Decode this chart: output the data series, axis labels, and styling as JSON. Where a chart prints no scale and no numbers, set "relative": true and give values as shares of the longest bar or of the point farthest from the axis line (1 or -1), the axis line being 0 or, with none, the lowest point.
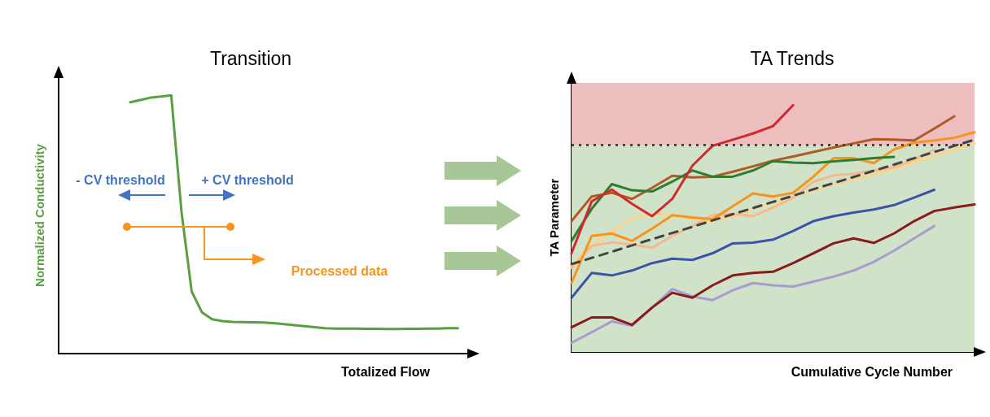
{
  "chart_data": [
    {
      "type": "line",
      "title": "Transition",
      "xlabel": "Totalized Flow",
      "ylabel": "Normalized Conductivity",
      "relative": true,
      "marker": "none",
      "categories": [
        null,
        null,
        null,
        null,
        null,
        null,
        null,
        null,
        null,
        null,
        null,
        null,
        null,
        null,
        null,
        null,
        null,
        null,
        null,
        null,
        null,
        null,
        null,
        null,
        null,
        null,
        null,
        null,
        null,
        null,
        null,
        null,
        null,
        null,
        null,
        null,
        null,
        null,
        null,
        null,
        null
      ],
      "series": [
        {
          "color": "#58a040",
          "values": [
            null,
            null,
            null,
            null,
            null,
            null,
            null,
            0.973,
            0.982,
            0.991,
            0.995,
            1.0,
            0.55,
            0.24,
            0.16,
            0.133,
            0.126,
            0.123,
            0.122,
            0.121,
            0.12,
            0.118,
            0.114,
            0.11,
            0.106,
            0.102,
            0.098,
            0.097,
            0.097,
            0.097,
            0.096,
            0.096,
            0.095,
            0.095,
            0.096,
            0.096,
            0.097,
            0.097,
            0.098,
            0.098,
            null
          ]
        }
      ],
      "annotations": [
        "- CV threshold",
        "+ CV threshold",
        "Processed data"
      ]
    },
    {
      "type": "line",
      "title": "TA Trends",
      "xlabel": "Cumulative Cycle Number",
      "ylabel": "TA Parameter",
      "relative": true,
      "marker": "none",
      "categories": [
        null,
        null,
        null,
        null,
        null,
        null,
        null,
        null,
        null,
        null,
        null,
        null,
        null,
        null,
        null,
        null,
        null,
        null,
        null,
        null,
        null
      ],
      "bands": [
        {
          "axis": "y",
          "from": 0,
          "to": 0.837,
          "color": "#d0e2c8"
        },
        {
          "axis": "y",
          "from": 0.837,
          "to": 1.09,
          "color": "#ecbfbe"
        }
      ],
      "ref_lines": [
        {
          "axis": "y",
          "value": 0.837,
          "color": "#444444",
          "line_style": "dotted"
        }
      ],
      "series": [
        {
          "color": "#a89bd0",
          "values": [
            0.037,
            0.08,
            0.124,
            0.106,
            0.18,
            0.255,
            0.225,
            0.21,
            0.25,
            0.279,
            0.27,
            0.265,
            0.285,
            0.305,
            0.33,
            0.365,
            0.41,
            0.46,
            0.51,
            null,
            null
          ]
        },
        {
          "color": "#8b1a1a",
          "values": [
            0.1,
            0.14,
            0.14,
            0.11,
            0.18,
            0.24,
            0.22,
            0.27,
            0.31,
            0.32,
            0.325,
            0.36,
            0.4,
            0.44,
            0.46,
            0.442,
            0.48,
            0.53,
            0.571,
            0.585,
            0.598
          ]
        },
        {
          "color": "#3a55a8",
          "values": [
            0.22,
            0.32,
            0.31,
            0.33,
            0.36,
            0.378,
            0.373,
            0.4,
            0.44,
            0.443,
            0.455,
            0.49,
            0.53,
            0.55,
            0.565,
            0.577,
            0.595,
            0.625,
            0.657,
            null,
            null
          ]
        },
        {
          "color": "#fdd58a",
          "values": [
            0.35,
            0.43,
            0.49,
            0.54,
            0.56,
            0.555,
            0.54,
            0.528,
            0.55,
            0.58,
            0.605,
            0.632,
            0.655,
            0.678,
            0.7,
            0.72,
            0.742,
            0.77,
            0.795,
            0.82,
            0.845
          ]
        },
        {
          "color": "#f6b98e",
          "values": [
            0.34,
            0.43,
            0.444,
            0.435,
            0.422,
            0.47,
            0.51,
            0.555,
            0.56,
            0.55,
            0.585,
            0.626,
            0.69,
            0.715,
            0.722,
            0.735,
            0.748,
            0.78,
            0.82,
            null,
            null
          ]
        },
        {
          "color": "#f7941d",
          "values": [
            0.28,
            0.47,
            0.48,
            0.45,
            0.5,
            0.554,
            0.545,
            0.538,
            0.59,
            0.642,
            0.63,
            0.645,
            0.71,
            0.785,
            0.785,
            0.765,
            0.82,
            0.848,
            0.857,
            0.868,
            0.89
          ]
        },
        {
          "color": "#444444",
          "line_style": "dashed",
          "values": [
            0.356,
            0.381,
            0.406,
            0.432,
            0.457,
            0.482,
            0.507,
            0.533,
            0.558,
            0.583,
            0.608,
            0.633,
            0.659,
            0.684,
            0.709,
            0.734,
            0.759,
            0.785,
            0.81,
            0.835,
            0.86
          ]
        },
        {
          "color": "#b05a24",
          "values": [
            0.53,
            0.63,
            0.645,
            0.62,
            0.665,
            0.714,
            0.707,
            0.71,
            0.73,
            0.752,
            0.775,
            0.792,
            0.81,
            0.828,
            0.845,
            0.862,
            0.86,
            0.857,
            0.905,
            0.955,
            null
          ]
        },
        {
          "color": "#2e7d32",
          "values": [
            0.45,
            0.58,
            0.68,
            0.655,
            0.65,
            0.69,
            0.735,
            0.71,
            0.71,
            0.735,
            0.773,
            0.767,
            0.765,
            0.772,
            0.778,
            0.785,
            0.79,
            null,
            null,
            null,
            null
          ]
        },
        {
          "color": "#d12a2e",
          "values": [
            0.4,
            0.61,
            0.658,
            0.6,
            0.55,
            0.62,
            0.755,
            0.835,
            0.86,
            0.885,
            0.915,
            1.0,
            null,
            null,
            null,
            null,
            null,
            null,
            null,
            null,
            null
          ]
        }
      ]
    }
  ]
}
